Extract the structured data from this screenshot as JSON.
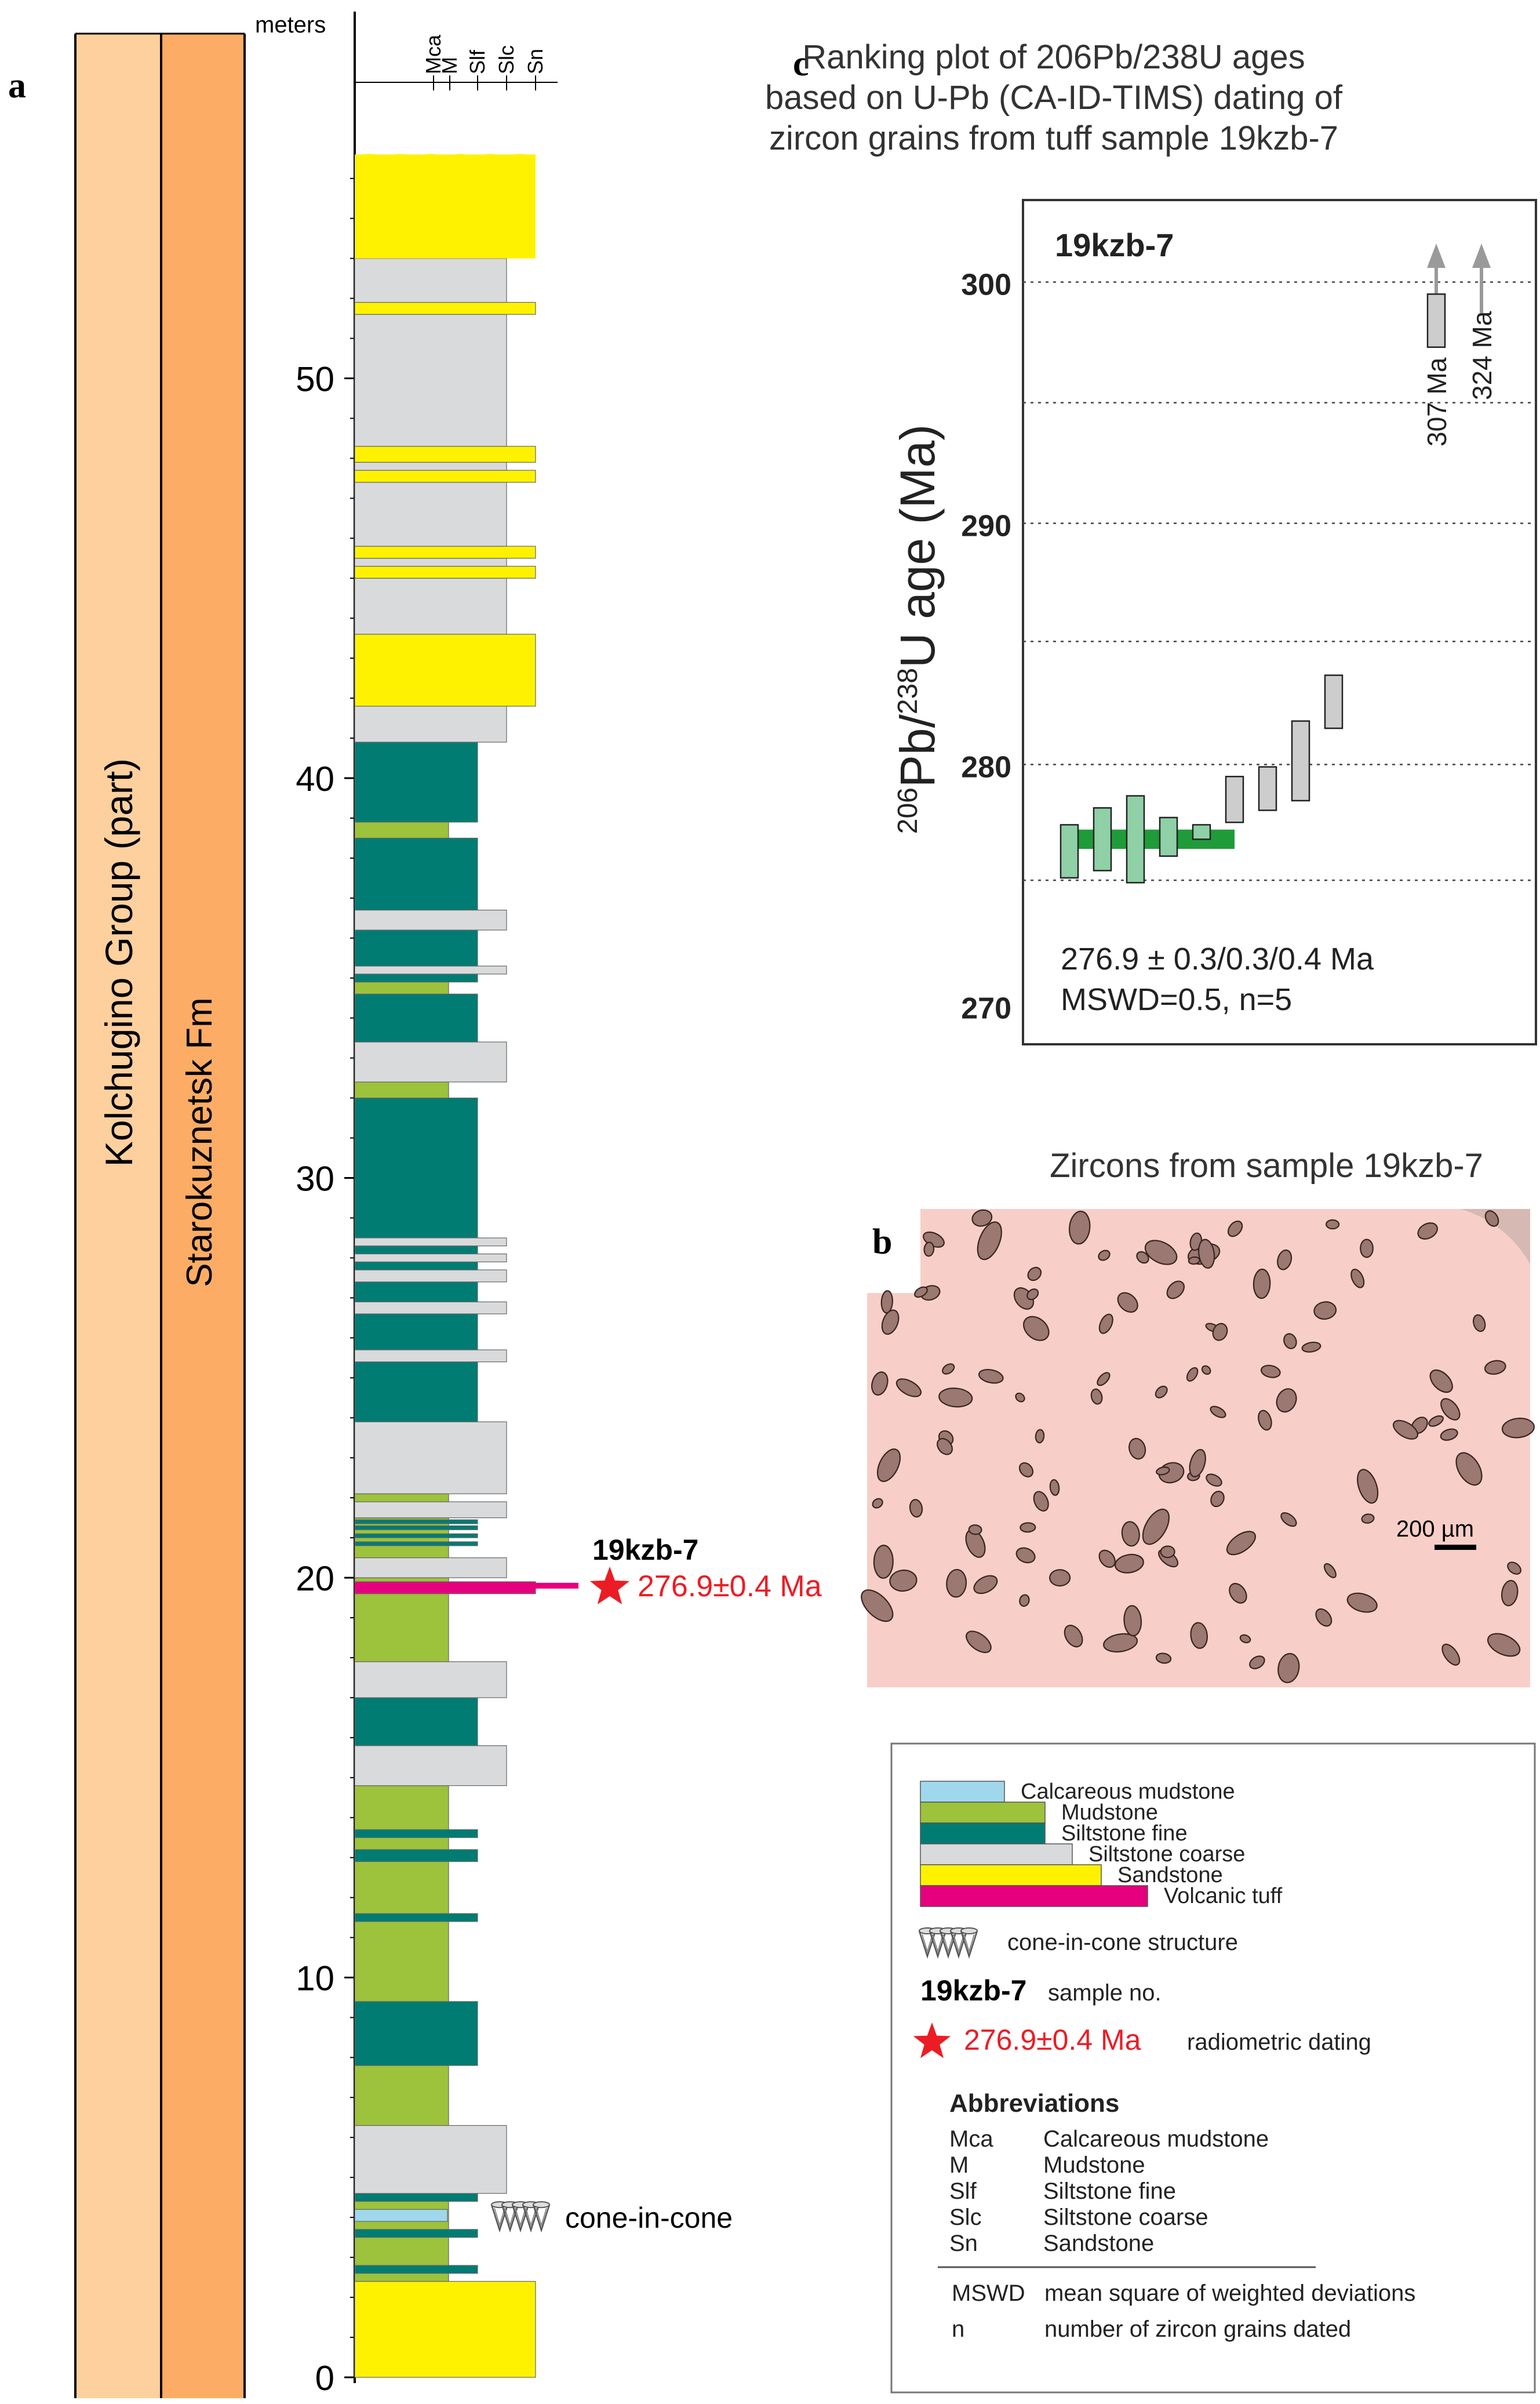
{
  "panel_letters": {
    "a": "a",
    "b": "b",
    "c": "c"
  },
  "column_a": {
    "group_label": "Kolchugino Group (part)",
    "formation_label": "Starokuznetsk Fm",
    "depth_axis_unit": "meters",
    "depth_ticks": [
      {
        "value": 0,
        "label": "0"
      },
      {
        "value": 10,
        "label": "10"
      },
      {
        "value": 20,
        "label": "20"
      },
      {
        "value": 30,
        "label": "30"
      },
      {
        "value": 40,
        "label": "40"
      },
      {
        "value": 50,
        "label": "50"
      }
    ],
    "grain_scale": [
      "Mca",
      "M",
      "Slf",
      "Slc",
      "Sn"
    ],
    "lithology_colors": {
      "Mca": "#9fd8ec",
      "M": "#9dc23b",
      "Slf": "#007c73",
      "Slc": "#d9dadb",
      "Sn": "#fff200",
      "Tuff": "#e6007e"
    },
    "beds": [
      {
        "base": 0.0,
        "top": 2.4,
        "lith": "Sn"
      },
      {
        "base": 2.4,
        "top": 4.6,
        "lith": "M"
      },
      {
        "base": 2.6,
        "top": 2.8,
        "lith": "Slf"
      },
      {
        "base": 3.5,
        "top": 3.7,
        "lith": "Slf"
      },
      {
        "base": 3.9,
        "top": 4.2,
        "lith": "Mca"
      },
      {
        "base": 4.4,
        "top": 4.6,
        "lith": "Slf"
      },
      {
        "base": 4.6,
        "top": 6.3,
        "lith": "Slc"
      },
      {
        "base": 6.3,
        "top": 7.8,
        "lith": "M"
      },
      {
        "base": 7.8,
        "top": 9.4,
        "lith": "Slf"
      },
      {
        "base": 9.4,
        "top": 14.8,
        "lith": "M"
      },
      {
        "base": 11.4,
        "top": 11.6,
        "lith": "Slf"
      },
      {
        "base": 12.9,
        "top": 13.2,
        "lith": "Slf"
      },
      {
        "base": 13.5,
        "top": 13.7,
        "lith": "Slf"
      },
      {
        "base": 14.8,
        "top": 15.8,
        "lith": "Slc"
      },
      {
        "base": 15.8,
        "top": 17.0,
        "lith": "Slf"
      },
      {
        "base": 17.0,
        "top": 17.9,
        "lith": "Slc"
      },
      {
        "base": 17.9,
        "top": 19.6,
        "lith": "M"
      },
      {
        "base": 19.6,
        "top": 19.9,
        "lith": "Tuff"
      },
      {
        "base": 19.9,
        "top": 20.0,
        "lith": "M"
      },
      {
        "base": 20.0,
        "top": 20.5,
        "lith": "Slc"
      },
      {
        "base": 20.5,
        "top": 21.5,
        "lith": "M"
      },
      {
        "base": 20.8,
        "top": 20.9,
        "lith": "Slf"
      },
      {
        "base": 21.0,
        "top": 21.1,
        "lith": "Slf"
      },
      {
        "base": 21.2,
        "top": 21.3,
        "lith": "Slf"
      },
      {
        "base": 21.35,
        "top": 21.45,
        "lith": "Slf"
      },
      {
        "base": 21.5,
        "top": 21.9,
        "lith": "Slc"
      },
      {
        "base": 21.9,
        "top": 22.1,
        "lith": "M"
      },
      {
        "base": 22.1,
        "top": 23.9,
        "lith": "Slc"
      },
      {
        "base": 23.9,
        "top": 25.4,
        "lith": "Slf"
      },
      {
        "base": 25.4,
        "top": 25.7,
        "lith": "Slc"
      },
      {
        "base": 25.7,
        "top": 26.6,
        "lith": "Slf"
      },
      {
        "base": 26.6,
        "top": 26.9,
        "lith": "Slc"
      },
      {
        "base": 26.9,
        "top": 27.4,
        "lith": "Slf"
      },
      {
        "base": 27.4,
        "top": 27.7,
        "lith": "Slc"
      },
      {
        "base": 27.7,
        "top": 27.9,
        "lith": "Slf"
      },
      {
        "base": 27.9,
        "top": 28.1,
        "lith": "Slc"
      },
      {
        "base": 28.1,
        "top": 28.3,
        "lith": "Slf"
      },
      {
        "base": 28.3,
        "top": 28.5,
        "lith": "Slc"
      },
      {
        "base": 28.5,
        "top": 32.0,
        "lith": "Slf"
      },
      {
        "base": 32.0,
        "top": 32.4,
        "lith": "M"
      },
      {
        "base": 32.4,
        "top": 33.4,
        "lith": "Slc"
      },
      {
        "base": 33.4,
        "top": 34.6,
        "lith": "Slf"
      },
      {
        "base": 34.6,
        "top": 34.9,
        "lith": "M"
      },
      {
        "base": 34.9,
        "top": 35.1,
        "lith": "Slf"
      },
      {
        "base": 35.1,
        "top": 35.3,
        "lith": "Slc"
      },
      {
        "base": 35.3,
        "top": 36.2,
        "lith": "Slf"
      },
      {
        "base": 36.2,
        "top": 36.7,
        "lith": "Slc"
      },
      {
        "base": 36.7,
        "top": 38.5,
        "lith": "Slf"
      },
      {
        "base": 38.5,
        "top": 38.9,
        "lith": "M"
      },
      {
        "base": 38.9,
        "top": 40.9,
        "lith": "Slf"
      },
      {
        "base": 40.9,
        "top": 41.8,
        "lith": "Slc"
      },
      {
        "base": 41.8,
        "top": 43.6,
        "lith": "Sn"
      },
      {
        "base": 43.6,
        "top": 45.0,
        "lith": "Slc"
      },
      {
        "base": 45.0,
        "top": 45.3,
        "lith": "Sn"
      },
      {
        "base": 45.3,
        "top": 45.5,
        "lith": "Slc"
      },
      {
        "base": 45.5,
        "top": 45.8,
        "lith": "Sn"
      },
      {
        "base": 45.8,
        "top": 47.4,
        "lith": "Slc"
      },
      {
        "base": 47.4,
        "top": 47.7,
        "lith": "Sn"
      },
      {
        "base": 47.7,
        "top": 47.9,
        "lith": "Slc"
      },
      {
        "base": 47.9,
        "top": 48.3,
        "lith": "Sn"
      },
      {
        "base": 48.3,
        "top": 51.6,
        "lith": "Slc"
      },
      {
        "base": 51.6,
        "top": 51.9,
        "lith": "Sn"
      },
      {
        "base": 51.9,
        "top": 53.0,
        "lith": "Slc"
      },
      {
        "base": 53.0,
        "top": 55.6,
        "lith": "Sn"
      }
    ],
    "sample": {
      "name": "19kzb-7",
      "depth": 19.8,
      "age_label": "276.9±0.4 Ma"
    },
    "cone_label": "cone-in-cone",
    "cone_depth": 4.0
  },
  "chart_data": {
    "type": "ranking-plot",
    "title": "Ranking plot of 206Pb/238U ages based on U-Pb (CA-ID-TIMS)  dating of zircon grains from tuff sample 19kzb-7",
    "title_lines": [
      "Ranking plot of 206Pb/238U ages",
      "based on U-Pb (CA-ID-TIMS)  dating of",
      "zircon grains from tuff sample 19kzb-7"
    ],
    "sample_label": "19kzb-7",
    "ylabel_parts": [
      "206",
      "Pb/",
      "238",
      "U age (Ma)"
    ],
    "ylim": [
      268.5,
      303.5
    ],
    "yticks": [
      {
        "value": 270,
        "label": "270"
      },
      {
        "value": 280,
        "label": "280"
      },
      {
        "value": 290,
        "label": "290"
      },
      {
        "value": 300,
        "label": "300"
      }
    ],
    "gridlines": [
      275.3,
      280.1,
      285.2,
      290.1,
      295.1,
      300.1
    ],
    "grains": [
      {
        "rank": 1,
        "age": 276.5,
        "low": 275.4,
        "high": 277.6,
        "used": true
      },
      {
        "rank": 2,
        "age": 277.0,
        "low": 275.7,
        "high": 278.3,
        "used": true
      },
      {
        "rank": 3,
        "age": 277.0,
        "low": 275.2,
        "high": 278.8,
        "used": true
      },
      {
        "rank": 4,
        "age": 277.1,
        "low": 276.3,
        "high": 277.9,
        "used": true
      },
      {
        "rank": 5,
        "age": 277.3,
        "low": 277.0,
        "high": 277.6,
        "used": true
      },
      {
        "rank": 6,
        "age": 278.6,
        "low": 277.7,
        "high": 279.6,
        "used": false
      },
      {
        "rank": 7,
        "age": 279.1,
        "low": 278.2,
        "high": 280.0,
        "used": false
      },
      {
        "rank": 8,
        "age": 280.2,
        "low": 278.6,
        "high": 281.9,
        "used": false
      },
      {
        "rank": 9,
        "age": 282.7,
        "low": 281.6,
        "high": 283.8,
        "used": false
      },
      {
        "rank": 10,
        "age": 298.5,
        "low": 297.4,
        "high": 299.6,
        "used": false
      }
    ],
    "offscale": [
      {
        "label": "307 Ma",
        "age": 307
      },
      {
        "label": "324 Ma",
        "age": 324
      }
    ],
    "weighted_mean": {
      "value": 276.9,
      "band_low": 276.6,
      "band_high": 277.4
    },
    "annotation_lines": [
      "276.9 ± 0.3/0.3/0.4 Ma",
      "MSWD=0.5, n=5"
    ],
    "colors": {
      "used": "#8fd0a6",
      "rejected": "#cdcdcd",
      "band": "#1f9b3a",
      "arrow": "#9a9a9a"
    }
  },
  "photo": {
    "title": "Zircons from sample 19kzb-7",
    "scale_label": "200 µm",
    "background": "#f7cfc8"
  },
  "legend": {
    "lithologies": [
      {
        "label": "Calcareous mudstone",
        "lith": "Mca"
      },
      {
        "label": "Mudstone",
        "lith": "M"
      },
      {
        "label": "Siltstone fine",
        "lith": "Slf"
      },
      {
        "label": "Siltstone coarse",
        "lith": "Slc"
      },
      {
        "label": "Sandstone",
        "lith": "Sn"
      },
      {
        "label": "Volcanic tuff",
        "lith": "Tuff"
      }
    ],
    "cone_label": "cone-in-cone structure",
    "sample_name": "19kzb-7",
    "sample_desc": "sample no.",
    "dating_value": "276.9±0.4 Ma",
    "dating_desc": "radiometric dating",
    "abbrev_title": "Abbreviations",
    "abbrevs": [
      {
        "code": "Mca",
        "desc": "Calcareous mudstone"
      },
      {
        "code": "M",
        "desc": "Mudstone"
      },
      {
        "code": "Slf",
        "desc": "Siltstone fine"
      },
      {
        "code": "Slc",
        "desc": "Siltstone coarse"
      },
      {
        "code": "Sn",
        "desc": "Sandstone"
      }
    ],
    "defs": [
      {
        "code": "MSWD",
        "desc": "mean square of weighted deviations"
      },
      {
        "code": "n",
        "desc": "number of zircon grains dated"
      }
    ]
  }
}
